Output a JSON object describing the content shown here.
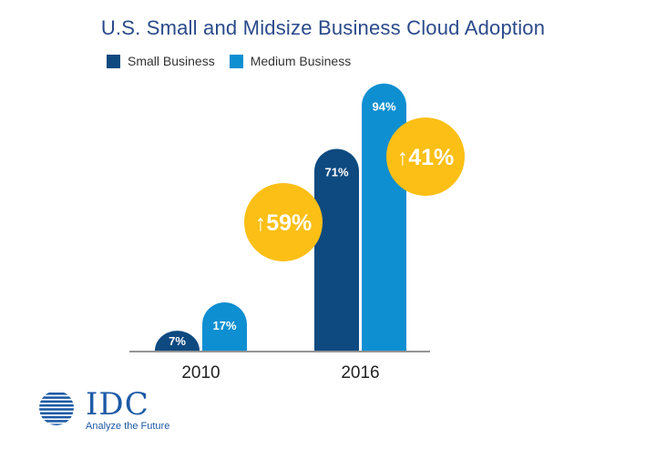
{
  "colors": {
    "title": "#2a4a8a",
    "small": "#0e4a80",
    "medium": "#0e8fd1",
    "badge": "#fbbf15",
    "axis": "#555555",
    "logo": "#1d5aa6"
  },
  "logo": {
    "brand": "IDC",
    "tagline": "Analyze the Future"
  },
  "chart_data": {
    "type": "bar",
    "title": "U.S. Small and Midsize Business Cloud Adoption",
    "categories": [
      "2010",
      "2016"
    ],
    "series": [
      {
        "name": "Small Business",
        "values": [
          7,
          71
        ],
        "labels": [
          "7%",
          "71%"
        ]
      },
      {
        "name": "Medium Business",
        "values": [
          17,
          94
        ],
        "labels": [
          "17%",
          "94%"
        ]
      }
    ],
    "ylim": [
      0,
      100
    ],
    "grid": false,
    "legend": "top-left",
    "annotations": [
      {
        "text": "↑59%",
        "series": "Small Business",
        "category": "2016"
      },
      {
        "text": "↑41%",
        "series": "Medium Business",
        "category": "2016"
      }
    ]
  }
}
